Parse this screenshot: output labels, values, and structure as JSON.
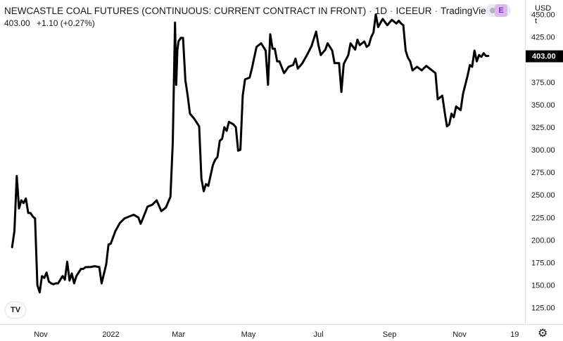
{
  "header": {
    "title": "NEWCASTLE COAL FUTURES (CONTINUOUS: CURRENT CONTRACT IN FRONT)",
    "interval": "1D",
    "exchange": "ICEEUR",
    "source": "TradingView",
    "price": "403.00",
    "change": "+1.10 (+0.27%)"
  },
  "toolbar": {
    "currency": "USD",
    "currency_sub": "t",
    "badge": "E"
  },
  "icons": {
    "logo": "tradingview-logo-icon",
    "settings": "gear-icon",
    "visibility": "eye-icon"
  },
  "chart_data": {
    "type": "line",
    "series_color": "#000000",
    "last_price_label": "403.00",
    "ylim": [
      106,
      466
    ],
    "y_ticks": [
      125,
      150,
      175,
      200,
      225,
      250,
      275,
      300,
      325,
      350,
      375,
      400,
      425,
      450
    ],
    "y_tick_labels": [
      "125.00",
      "150.00",
      "175.00",
      "200.00",
      "225.00",
      "250.00",
      "275.00",
      "300.00",
      "325.00",
      "350.00",
      "375.00",
      "400.00",
      "425.00",
      "450.00"
    ],
    "x_ticks": [
      {
        "label": "Nov",
        "date": "2021-11-01"
      },
      {
        "label": "2022",
        "date": "2022-01-01"
      },
      {
        "label": "Mar",
        "date": "2022-03-01"
      },
      {
        "label": "May",
        "date": "2022-05-01"
      },
      {
        "label": "Jul",
        "date": "2022-07-01"
      },
      {
        "label": "Sep",
        "date": "2022-09-01"
      },
      {
        "label": "Nov",
        "date": "2022-11-01"
      },
      {
        "label": "19",
        "date": "2022-12-19"
      }
    ],
    "points": [
      [
        "2021-10-07",
        192
      ],
      [
        "2021-10-09",
        210
      ],
      [
        "2021-10-11",
        271
      ],
      [
        "2021-10-13",
        235
      ],
      [
        "2021-10-15",
        244
      ],
      [
        "2021-10-17",
        241
      ],
      [
        "2021-10-19",
        246
      ],
      [
        "2021-10-21",
        230
      ],
      [
        "2021-10-23",
        230
      ],
      [
        "2021-10-25",
        226
      ],
      [
        "2021-10-27",
        224
      ],
      [
        "2021-10-29",
        150
      ],
      [
        "2021-10-31",
        142
      ],
      [
        "2021-11-02",
        160
      ],
      [
        "2021-11-04",
        158
      ],
      [
        "2021-11-06",
        164
      ],
      [
        "2021-11-08",
        154
      ],
      [
        "2021-11-10",
        152
      ],
      [
        "2021-11-12",
        151
      ],
      [
        "2021-11-14",
        152
      ],
      [
        "2021-11-16",
        152
      ],
      [
        "2021-11-18",
        156
      ],
      [
        "2021-11-20",
        160
      ],
      [
        "2021-11-22",
        156
      ],
      [
        "2021-11-24",
        176
      ],
      [
        "2021-11-26",
        155
      ],
      [
        "2021-11-28",
        163
      ],
      [
        "2021-11-30",
        152
      ],
      [
        "2021-12-02",
        160
      ],
      [
        "2021-12-04",
        164
      ],
      [
        "2021-12-06",
        168
      ],
      [
        "2021-12-08",
        168
      ],
      [
        "2021-12-10",
        170
      ],
      [
        "2021-12-14",
        170
      ],
      [
        "2021-12-18",
        171
      ],
      [
        "2021-12-22",
        170
      ],
      [
        "2021-12-24",
        152
      ],
      [
        "2021-12-28",
        173
      ],
      [
        "2021-12-30",
        195
      ],
      [
        "2022-01-01",
        196
      ],
      [
        "2022-01-05",
        210
      ],
      [
        "2022-01-09",
        219
      ],
      [
        "2022-01-13",
        224
      ],
      [
        "2022-01-17",
        226
      ],
      [
        "2022-01-21",
        228
      ],
      [
        "2022-01-25",
        225
      ],
      [
        "2022-01-27",
        218
      ],
      [
        "2022-01-29",
        224
      ],
      [
        "2022-02-02",
        237
      ],
      [
        "2022-02-06",
        239
      ],
      [
        "2022-02-10",
        244
      ],
      [
        "2022-02-14",
        232
      ],
      [
        "2022-02-18",
        236
      ],
      [
        "2022-02-22",
        248
      ],
      [
        "2022-02-24",
        308
      ],
      [
        "2022-02-26",
        441
      ],
      [
        "2022-02-27",
        372
      ],
      [
        "2022-02-28",
        410
      ],
      [
        "2022-03-01",
        420
      ],
      [
        "2022-03-03",
        424
      ],
      [
        "2022-03-05",
        424
      ],
      [
        "2022-03-07",
        377
      ],
      [
        "2022-03-09",
        360
      ],
      [
        "2022-03-11",
        340
      ],
      [
        "2022-03-15",
        334
      ],
      [
        "2022-03-19",
        326
      ],
      [
        "2022-03-21",
        268
      ],
      [
        "2022-03-23",
        254
      ],
      [
        "2022-03-25",
        262
      ],
      [
        "2022-03-27",
        260
      ],
      [
        "2022-03-31",
        283
      ],
      [
        "2022-04-02",
        289
      ],
      [
        "2022-04-04",
        292
      ],
      [
        "2022-04-06",
        310
      ],
      [
        "2022-04-08",
        312
      ],
      [
        "2022-04-10",
        325
      ],
      [
        "2022-04-12",
        321
      ],
      [
        "2022-04-14",
        331
      ],
      [
        "2022-04-18",
        328
      ],
      [
        "2022-04-20",
        325
      ],
      [
        "2022-04-22",
        299
      ],
      [
        "2022-04-24",
        300
      ],
      [
        "2022-04-26",
        360
      ],
      [
        "2022-04-28",
        378
      ],
      [
        "2022-05-02",
        380
      ],
      [
        "2022-05-04",
        390
      ],
      [
        "2022-05-08",
        414
      ],
      [
        "2022-05-12",
        418
      ],
      [
        "2022-05-16",
        410
      ],
      [
        "2022-05-18",
        372
      ],
      [
        "2022-05-20",
        428
      ],
      [
        "2022-05-22",
        412
      ],
      [
        "2022-05-24",
        412
      ],
      [
        "2022-05-26",
        398
      ],
      [
        "2022-05-28",
        398
      ],
      [
        "2022-06-01",
        385
      ],
      [
        "2022-06-05",
        392
      ],
      [
        "2022-06-09",
        394
      ],
      [
        "2022-06-11",
        401
      ],
      [
        "2022-06-13",
        390
      ],
      [
        "2022-06-17",
        396
      ],
      [
        "2022-06-21",
        405
      ],
      [
        "2022-06-25",
        415
      ],
      [
        "2022-06-29",
        431
      ],
      [
        "2022-07-01",
        416
      ],
      [
        "2022-07-03",
        405
      ],
      [
        "2022-07-07",
        411
      ],
      [
        "2022-07-09",
        418
      ],
      [
        "2022-07-13",
        410
      ],
      [
        "2022-07-15",
        396
      ],
      [
        "2022-07-19",
        396
      ],
      [
        "2022-07-21",
        364
      ],
      [
        "2022-07-23",
        395
      ],
      [
        "2022-07-27",
        405
      ],
      [
        "2022-07-29",
        418
      ],
      [
        "2022-08-02",
        411
      ],
      [
        "2022-08-04",
        422
      ],
      [
        "2022-08-06",
        416
      ],
      [
        "2022-08-10",
        420
      ],
      [
        "2022-08-12",
        414
      ],
      [
        "2022-08-14",
        416
      ],
      [
        "2022-08-16",
        425
      ],
      [
        "2022-08-18",
        430
      ],
      [
        "2022-08-20",
        450
      ],
      [
        "2022-08-22",
        436
      ],
      [
        "2022-08-26",
        445
      ],
      [
        "2022-08-30",
        438
      ],
      [
        "2022-09-03",
        444
      ],
      [
        "2022-09-07",
        440
      ],
      [
        "2022-09-09",
        443
      ],
      [
        "2022-09-11",
        440
      ],
      [
        "2022-09-13",
        438
      ],
      [
        "2022-09-15",
        410
      ],
      [
        "2022-09-17",
        402
      ],
      [
        "2022-09-19",
        398
      ],
      [
        "2022-09-21",
        388
      ],
      [
        "2022-09-25",
        392
      ],
      [
        "2022-09-29",
        388
      ],
      [
        "2022-10-03",
        393
      ],
      [
        "2022-10-07",
        389
      ],
      [
        "2022-10-11",
        385
      ],
      [
        "2022-10-13",
        356
      ],
      [
        "2022-10-17",
        360
      ],
      [
        "2022-10-19",
        342
      ],
      [
        "2022-10-21",
        326
      ],
      [
        "2022-10-23",
        328
      ],
      [
        "2022-10-25",
        340
      ],
      [
        "2022-10-27",
        336
      ],
      [
        "2022-10-29",
        348
      ],
      [
        "2022-11-02",
        344
      ],
      [
        "2022-11-04",
        362
      ],
      [
        "2022-11-08",
        382
      ],
      [
        "2022-11-10",
        394
      ],
      [
        "2022-11-12",
        392
      ],
      [
        "2022-11-14",
        410
      ],
      [
        "2022-11-16",
        398
      ],
      [
        "2022-11-18",
        405
      ],
      [
        "2022-11-20",
        403
      ],
      [
        "2022-11-22",
        407
      ],
      [
        "2022-11-24",
        404
      ],
      [
        "2022-11-26",
        404
      ]
    ]
  }
}
